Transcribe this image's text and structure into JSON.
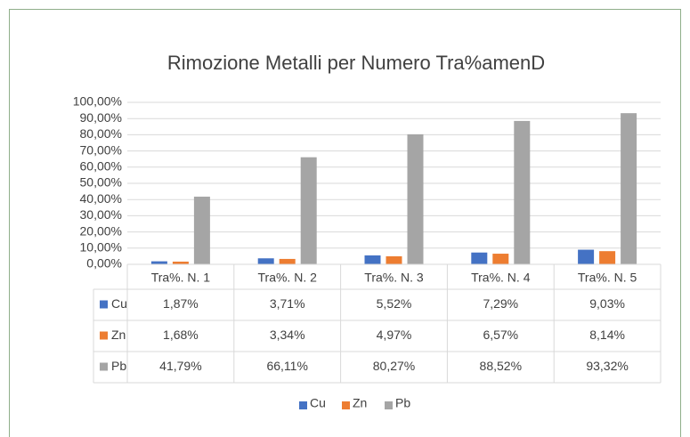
{
  "chart_data": {
    "type": "bar",
    "title": "Rimozione Metalli per Numero Tra%amenD",
    "categories": [
      "Tra%. N. 1",
      "Tra%. N. 2",
      "Tra%. N. 3",
      "Tra%. N. 4",
      "Tra%. N. 5"
    ],
    "series": [
      {
        "name": "Cu",
        "color": "#4472c4",
        "values": [
          1.87,
          3.71,
          5.52,
          7.29,
          9.03
        ],
        "value_labels": [
          "1,87%",
          "3,71%",
          "5,52%",
          "7,29%",
          "9,03%"
        ]
      },
      {
        "name": "Zn",
        "color": "#ed7d31",
        "values": [
          1.68,
          3.34,
          4.97,
          6.57,
          8.14
        ],
        "value_labels": [
          "1,68%",
          "3,34%",
          "4,97%",
          "6,57%",
          "8,14%"
        ]
      },
      {
        "name": "Pb",
        "color": "#a5a5a5",
        "values": [
          41.79,
          66.11,
          80.27,
          88.52,
          93.32
        ],
        "value_labels": [
          "41,79%",
          "66,11%",
          "80,27%",
          "88,52%",
          "93,32%"
        ]
      }
    ],
    "ylim": [
      0,
      100
    ],
    "yticks": [
      {
        "value": 0,
        "label": "0,00%"
      },
      {
        "value": 10,
        "label": "10,00%"
      },
      {
        "value": 20,
        "label": "20,00%"
      },
      {
        "value": 30,
        "label": "30,00%"
      },
      {
        "value": 40,
        "label": "40,00%"
      },
      {
        "value": 50,
        "label": "50,00%"
      },
      {
        "value": 60,
        "label": "60,00%"
      },
      {
        "value": 70,
        "label": "70,00%"
      },
      {
        "value": 80,
        "label": "80,00%"
      },
      {
        "value": 90,
        "label": "90,00%"
      },
      {
        "value": 100,
        "label": "100,00%"
      }
    ],
    "grid": true,
    "legend": "bottom"
  }
}
